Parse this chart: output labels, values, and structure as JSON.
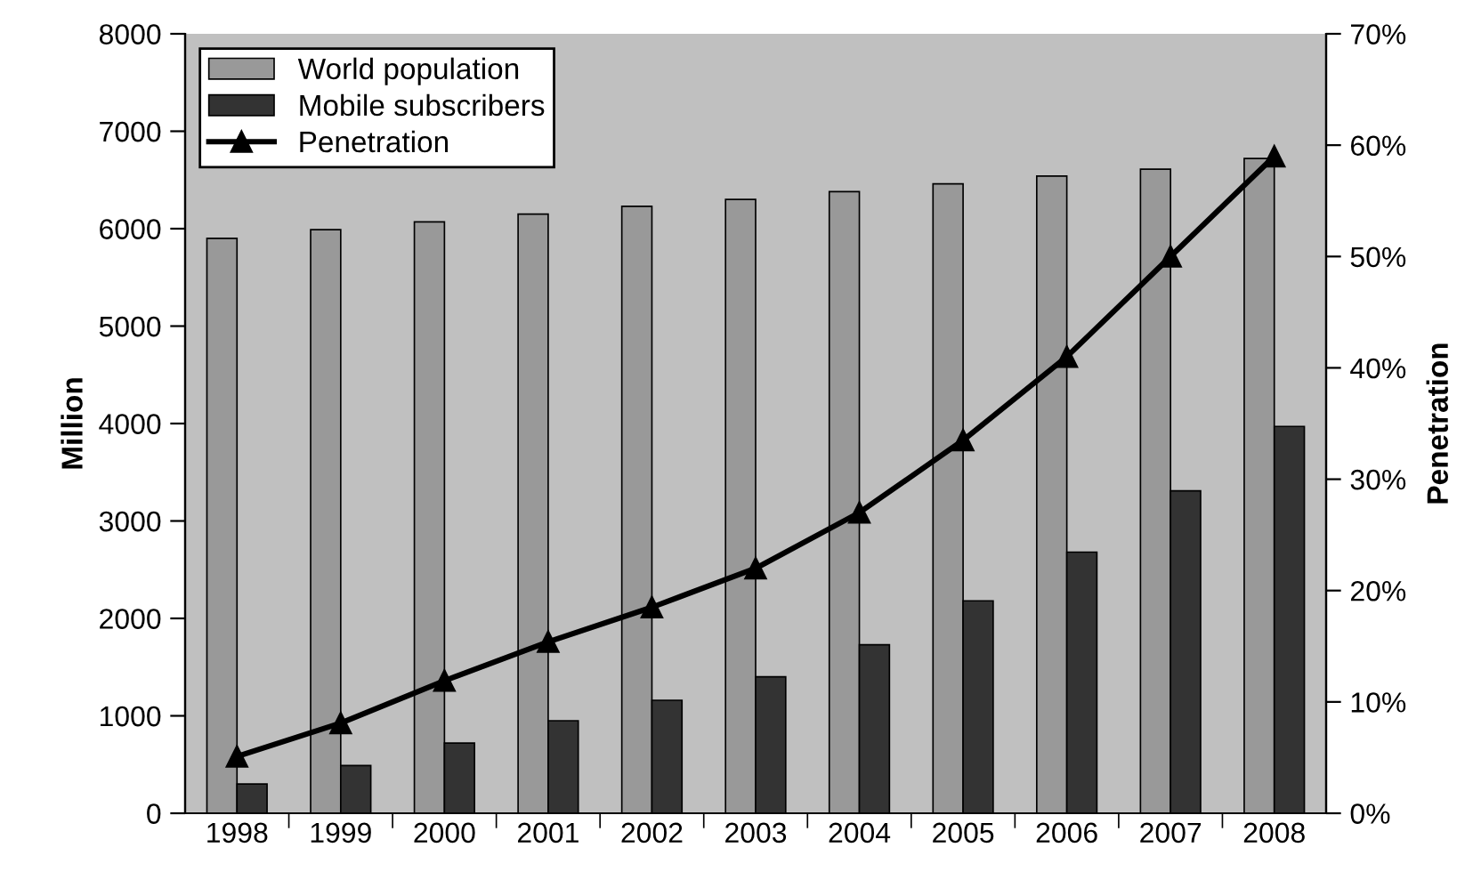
{
  "chart_data": {
    "type": "bar",
    "ylabel": "Million",
    "y2label": "Penetration",
    "categories": [
      "1998",
      "1999",
      "2000",
      "2001",
      "2002",
      "2003",
      "2004",
      "2005",
      "2006",
      "2007",
      "2008"
    ],
    "series": [
      {
        "name": "World population",
        "color": "#999999",
        "values": [
          5900,
          5990,
          6070,
          6150,
          6230,
          6300,
          6380,
          6460,
          6540,
          6610,
          6720
        ]
      },
      {
        "name": "Mobile subscribers",
        "color": "#333333",
        "values": [
          300,
          490,
          720,
          950,
          1160,
          1400,
          1730,
          2180,
          2680,
          3310,
          3970
        ]
      },
      {
        "name": "Penetration",
        "type": "line",
        "axis": "y2",
        "color": "#000000",
        "marker": "triangle",
        "values": [
          5.1,
          8.1,
          11.9,
          15.4,
          18.5,
          22,
          27,
          33.5,
          41,
          50,
          59
        ]
      }
    ],
    "ylim": [
      0,
      8000
    ],
    "yticks": [
      0,
      1000,
      2000,
      3000,
      4000,
      5000,
      6000,
      7000,
      8000
    ],
    "y2lim": [
      0,
      70
    ],
    "y2ticks": [
      {
        "value": 0,
        "label": "0%"
      },
      {
        "value": 10,
        "label": "10%"
      },
      {
        "value": 20,
        "label": "20%"
      },
      {
        "value": 30,
        "label": "30%"
      },
      {
        "value": 40,
        "label": "40%"
      },
      {
        "value": 50,
        "label": "50%"
      },
      {
        "value": 60,
        "label": "60%"
      },
      {
        "value": 70,
        "label": "70%"
      }
    ],
    "legend": "top left"
  }
}
